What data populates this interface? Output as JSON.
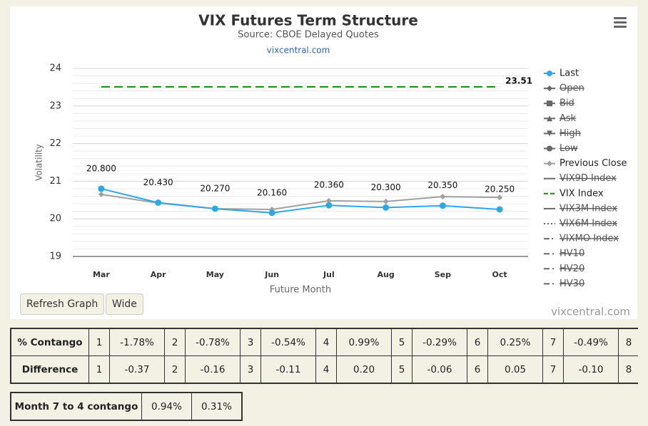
{
  "chart_data": {
    "type": "line",
    "title": "VIX Futures Term Structure",
    "subtitle": "Source: CBOE Delayed Quotes",
    "link": "vixcentral.com",
    "credits": "vixcentral.com",
    "x_label": "Future Month",
    "y_label": "Volatility",
    "categories": [
      "Mar",
      "Apr",
      "May",
      "Jun",
      "Jul",
      "Aug",
      "Sep",
      "Oct"
    ],
    "ylim": [
      19,
      24
    ],
    "yticks": [
      19,
      20,
      21,
      22,
      23,
      24
    ],
    "grid": true,
    "minor_grid": true,
    "legend": "right",
    "series": [
      {
        "name": "Last",
        "color": "#2ea6e8",
        "marker": "circle",
        "dash": "solid",
        "values": [
          20.8,
          20.43,
          20.27,
          20.16,
          20.36,
          20.3,
          20.35,
          20.25
        ],
        "value_labels": [
          "20.800",
          "20.430",
          "20.270",
          "20.160",
          "20.360",
          "20.300",
          "20.350",
          "20.250"
        ]
      },
      {
        "name": "Open",
        "hidden": true,
        "marker": "diamond",
        "dash": "solid",
        "color": "#555"
      },
      {
        "name": "Bid",
        "hidden": true,
        "marker": "square",
        "dash": "solid",
        "color": "#555"
      },
      {
        "name": "Ask",
        "hidden": true,
        "marker": "triangle",
        "dash": "solid",
        "color": "#555"
      },
      {
        "name": "High",
        "hidden": true,
        "marker": "triangle-down",
        "dash": "solid",
        "color": "#555"
      },
      {
        "name": "Low",
        "hidden": true,
        "marker": "circle",
        "dash": "solid",
        "color": "#555"
      },
      {
        "name": "Previous Close",
        "color": "#a0a0a0",
        "marker": "diamond",
        "dash": "solid",
        "values": [
          20.65,
          20.42,
          20.27,
          20.25,
          20.48,
          20.46,
          20.59,
          20.57
        ]
      },
      {
        "name": "VIX9D Index",
        "hidden": true,
        "dash": "solid",
        "color": "#666"
      },
      {
        "name": "VIX Index",
        "color": "#118811",
        "dash": "dash",
        "values": [
          23.51,
          23.51,
          23.51,
          23.51,
          23.51,
          23.51,
          23.51,
          23.51
        ]
      },
      {
        "name": "VIX3M Index",
        "hidden": true,
        "dash": "solid",
        "color": "#666"
      },
      {
        "name": "VIX6M Index",
        "hidden": true,
        "dash": "dot",
        "color": "#666"
      },
      {
        "name": "VIXMO Index",
        "hidden": true,
        "dash": "dashdot",
        "color": "#666"
      },
      {
        "name": "HV10",
        "hidden": true,
        "dash": "longdashdot",
        "color": "#666"
      },
      {
        "name": "HV20",
        "hidden": true,
        "dash": "longdashdot",
        "color": "#666"
      },
      {
        "name": "HV30",
        "hidden": true,
        "dash": "longdashdot",
        "color": "#666"
      }
    ]
  },
  "buttons": [
    "Refresh Graph",
    "Wide"
  ],
  "tables": {
    "contango": {
      "rows": [
        [
          "% Contango",
          "1",
          "-1.78%",
          "2",
          "-0.78%",
          "3",
          "-0.54%",
          "4",
          "0.99%",
          "5",
          "-0.29%",
          "6",
          "0.25%",
          "7",
          "-0.49%",
          "8"
        ],
        [
          "Difference",
          "1",
          "-0.37",
          "2",
          "-0.16",
          "3",
          "-0.11",
          "4",
          "0.20",
          "5",
          "-0.06",
          "6",
          "0.05",
          "7",
          "-0.10",
          "8"
        ]
      ]
    },
    "month_contango": {
      "rows": [
        [
          "Month 7 to 4 contango",
          "0.94%",
          "0.31%"
        ]
      ]
    }
  }
}
